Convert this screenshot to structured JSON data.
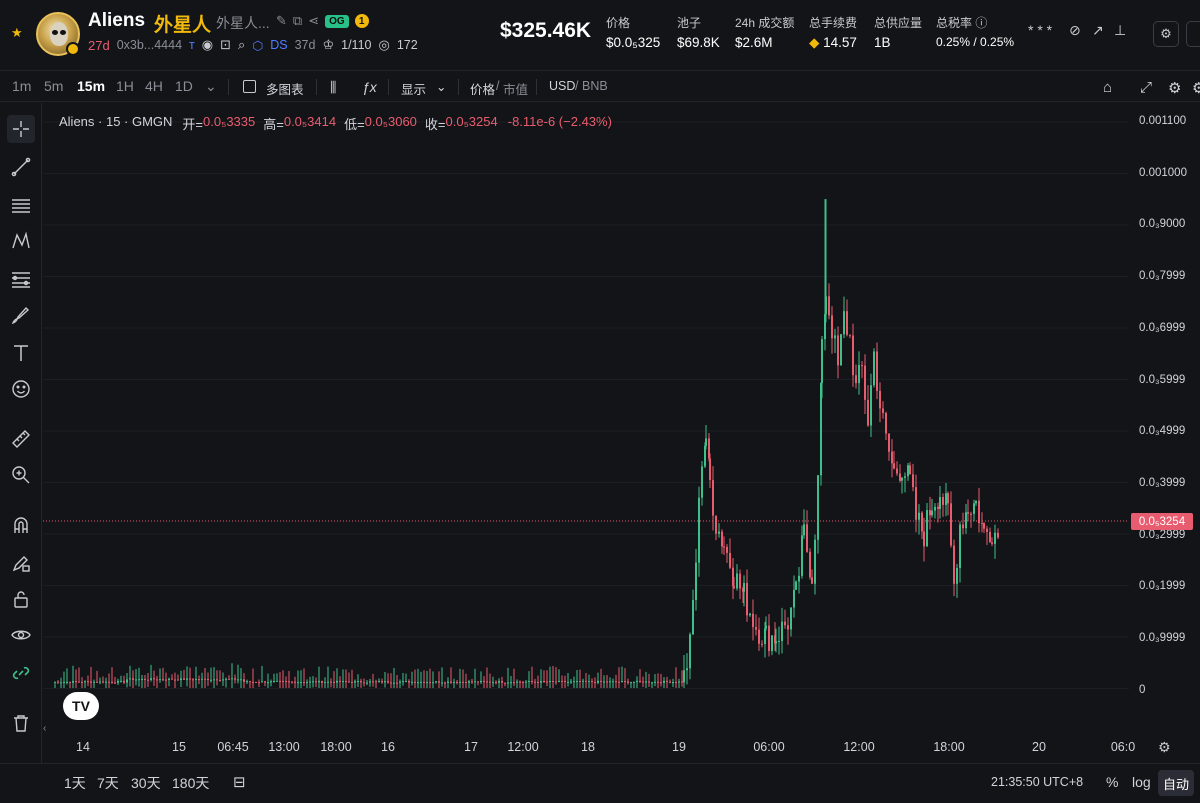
{
  "token": {
    "symbol": "Aliens",
    "name_cn": "外星人",
    "name_short": "外星人...",
    "age": "27d",
    "address": "0x3b...4444",
    "og_label": "OG",
    "og_count": "1",
    "ds_label": "DS",
    "ds_age": "37d",
    "holders_ratio": "1/110",
    "views": "172"
  },
  "market_cap": "$325.46K",
  "stats": [
    {
      "label": "价格",
      "value": "$0.0₅325"
    },
    {
      "label": "池子",
      "value": "$69.8K"
    },
    {
      "label": "24h 成交额",
      "value": "$2.6M"
    },
    {
      "label": "总手续费",
      "value": "14.57"
    },
    {
      "label": "总供应量",
      "value": "1B"
    },
    {
      "label": "总税率",
      "value": "0.25% / 0.25%"
    }
  ],
  "header_right": {
    "masked": "* * *"
  },
  "toolbar": {
    "timeframes": [
      "1m",
      "5m",
      "15m",
      "1H",
      "4H",
      "1D"
    ],
    "active_timeframe": "15m",
    "multi_chart": "多图表",
    "display": "显示",
    "price_mode": "价格",
    "mcap_mode": "市值",
    "currency_a": "USD",
    "currency_b": "BNB"
  },
  "legend": {
    "title": "Aliens · 15 · GMGN",
    "open_label": "开=",
    "open": "0.0₅3335",
    "high_label": "高=",
    "high": "0.0₅3414",
    "low_label": "低=",
    "low": "0.0₅3060",
    "close_label": "收=",
    "close": "0.0₅3254",
    "change": "-8.11e-6 (−2.43%)"
  },
  "price_ticks": [
    "0.001100",
    "0.001000",
    "0.0₃9000",
    "0.0₃7999",
    "0.0₃6999",
    "0.0₃5999",
    "0.0₃4999",
    "0.0₃3999",
    "0.0₃2999",
    "0.0₃1999",
    "0.0₃9999",
    "0"
  ],
  "last_price_label": "0.0₅3254",
  "time_ticks": [
    "14",
    "15",
    "06:45",
    "13:00",
    "18:00",
    "16",
    "17",
    "12:00",
    "18",
    "19",
    "06:00",
    "12:00",
    "18:00",
    "20",
    "06:0"
  ],
  "bottom": {
    "ranges": [
      "1天",
      "7天",
      "30天",
      "180天"
    ],
    "clock": "21:35:50 UTC+8",
    "percent": "%",
    "log": "log",
    "auto": "自动"
  },
  "colors": {
    "up": "#3fbf8c",
    "down": "#e85c6f",
    "bg": "#131417",
    "accent": "#f0b90b"
  },
  "chart_data": {
    "type": "candlestick",
    "series_note": "",
    "ylim": [
      0,
      0.0011
    ],
    "x": [
      "14",
      "15",
      "06:45",
      "13:00",
      "18:00",
      "16",
      "17",
      "12:00",
      "18",
      "19",
      "06:00",
      "12:00",
      "18:00",
      "20"
    ],
    "segments": [
      {
        "from": "14",
        "to": "19",
        "level": 1e-05,
        "note": ""
      },
      {
        "from": "19",
        "peak_open": 0.00049,
        "spike_high": 0.00095,
        "spike_time": "~09:30 day 19",
        "close": 0.00033
      }
    ],
    "last_close": 0.00033
  }
}
